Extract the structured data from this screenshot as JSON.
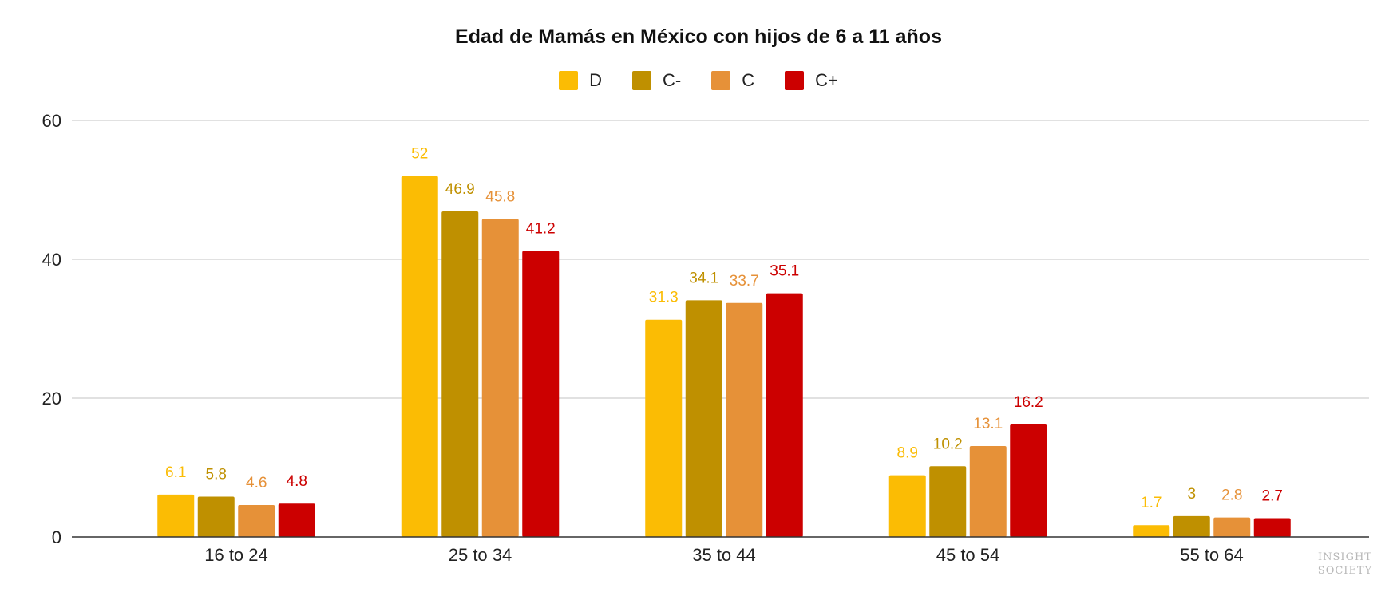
{
  "chart_data": {
    "type": "bar",
    "title": "Edad de Mamás en México con hijos de 6 a 11 años",
    "categories": [
      "16 to 24",
      "25 to 34",
      "35 to 44",
      "45 to 54",
      "55 to 64"
    ],
    "series": [
      {
        "name": "D",
        "color": "#FBBC04",
        "values": [
          6.1,
          52,
          31.3,
          8.9,
          1.7
        ]
      },
      {
        "name": "C-",
        "color": "#BF9000",
        "values": [
          5.8,
          46.9,
          34.1,
          10.2,
          3
        ]
      },
      {
        "name": "C",
        "color": "#E69138",
        "values": [
          4.6,
          45.8,
          33.7,
          13.1,
          2.8
        ]
      },
      {
        "name": "C+",
        "color": "#CC0000",
        "values": [
          4.8,
          41.2,
          35.1,
          16.2,
          2.7
        ]
      }
    ],
    "ylim": [
      0,
      60
    ],
    "yticks": [
      0,
      20,
      40,
      60
    ],
    "grid": true,
    "legend_position": "top",
    "data_labels": true
  },
  "watermark": {
    "line1": "INSIGHT",
    "line2": "SOCIETY"
  }
}
